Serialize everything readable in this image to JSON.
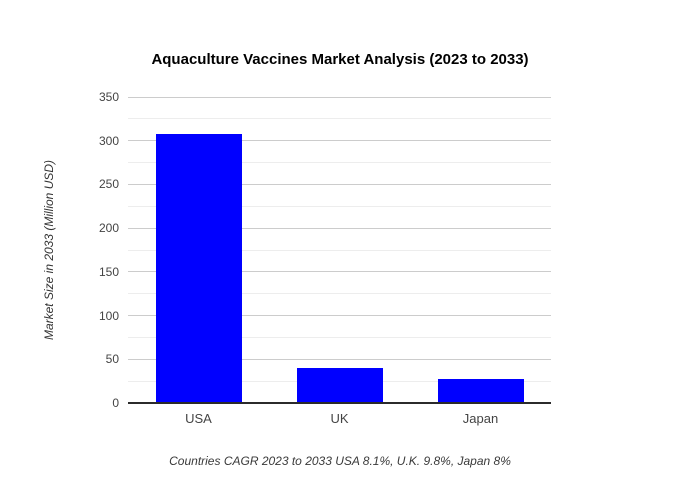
{
  "chart": {
    "title": "Aquaculture Vaccines Market Analysis (2023 to 2033)",
    "y_axis_title": "Market Size in 2033 (Million USD)",
    "caption": "Countries CAGR 2023 to 2033 USA 8.1%, U.K. 9.8%, Japan 8%"
  },
  "chart_data": {
    "type": "bar",
    "categories": [
      "USA",
      "UK",
      "Japan"
    ],
    "values": [
      308,
      40,
      28
    ],
    "title": "Aquaculture Vaccines Market Analysis (2023 to 2033)",
    "xlabel": "",
    "ylabel": "Market Size in 2033 (Million USD)",
    "ylim": [
      0,
      350
    ],
    "ytick_step": 50,
    "minor_gridline_step": 25,
    "grid": true,
    "legend": "none",
    "annotation": "Countries CAGR 2023 to 2033 USA 8.1%, U.K. 9.8%, Japan 8%"
  },
  "colors": {
    "bar": "#0000ff",
    "major_gridline": "#cccccc",
    "minor_gridline": "#ededed",
    "baseline": "#2b2b2b",
    "tick_label": "#444444",
    "title": "#000000",
    "caption": "#3a3a3a",
    "background": "#ffffff"
  }
}
